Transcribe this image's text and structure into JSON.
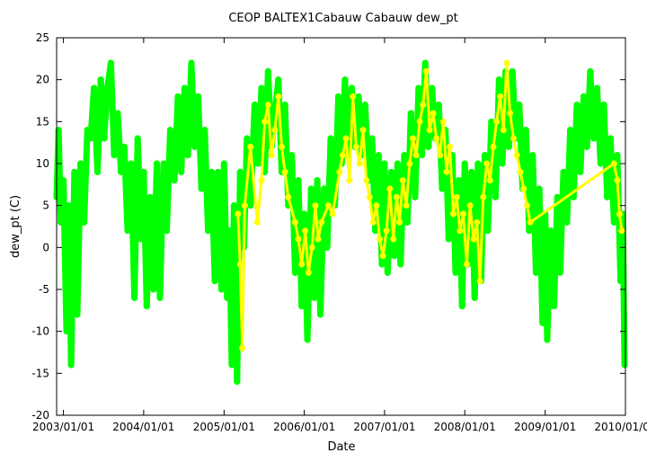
{
  "chart_data": {
    "type": "scatter",
    "title": "CEOP BALTEX1Cabauw Cabauw  dew_pt",
    "xlabel": "Date",
    "ylabel": "dew_pt (C)",
    "x_scale": "date",
    "xlim": [
      "2002/12/01",
      "2010/01/01"
    ],
    "ylim": [
      -20,
      25
    ],
    "y_ticks": [
      -20,
      -15,
      -10,
      -5,
      0,
      5,
      10,
      15,
      20,
      25
    ],
    "x_ticks": [
      "2003/01/01",
      "2004/01/01",
      "2005/01/01",
      "2006/01/01",
      "2007/01/01",
      "2008/01/01",
      "2009/01/01",
      "2010/01/01"
    ],
    "grid": false,
    "legend": "none",
    "series": [
      {
        "color": "#00ff00",
        "points": [
          [
            "2002/12/01",
            6
          ],
          [
            "2002/12/10",
            14
          ],
          [
            "2002/12/20",
            3
          ],
          [
            "2003/01/01",
            8
          ],
          [
            "2003/01/15",
            -10
          ],
          [
            "2003/01/25",
            5
          ],
          [
            "2003/02/05",
            -14
          ],
          [
            "2003/02/20",
            9
          ],
          [
            "2003/03/05",
            -8
          ],
          [
            "2003/03/20",
            10
          ],
          [
            "2003/04/05",
            3
          ],
          [
            "2003/04/20",
            14
          ],
          [
            "2003/05/05",
            13
          ],
          [
            "2003/05/20",
            19
          ],
          [
            "2003/06/05",
            9
          ],
          [
            "2003/06/20",
            20
          ],
          [
            "2003/07/05",
            13
          ],
          [
            "2003/07/20",
            19
          ],
          [
            "2003/08/05",
            22
          ],
          [
            "2003/08/20",
            11
          ],
          [
            "2003/09/05",
            16
          ],
          [
            "2003/09/20",
            9
          ],
          [
            "2003/10/05",
            12
          ],
          [
            "2003/10/20",
            2
          ],
          [
            "2003/11/05",
            10
          ],
          [
            "2003/11/20",
            -6
          ],
          [
            "2003/12/05",
            13
          ],
          [
            "2003/12/20",
            1
          ],
          [
            "2004/01/01",
            9
          ],
          [
            "2004/01/15",
            -7
          ],
          [
            "2004/01/30",
            6
          ],
          [
            "2004/02/15",
            -5
          ],
          [
            "2004/03/01",
            10
          ],
          [
            "2004/03/15",
            -6
          ],
          [
            "2004/04/01",
            10
          ],
          [
            "2004/04/15",
            2
          ],
          [
            "2004/05/01",
            14
          ],
          [
            "2004/05/20",
            8
          ],
          [
            "2004/06/05",
            18
          ],
          [
            "2004/06/20",
            9
          ],
          [
            "2004/07/05",
            19
          ],
          [
            "2004/07/20",
            11
          ],
          [
            "2004/08/05",
            22
          ],
          [
            "2004/08/20",
            12
          ],
          [
            "2004/09/05",
            18
          ],
          [
            "2004/09/20",
            7
          ],
          [
            "2004/10/05",
            14
          ],
          [
            "2004/10/20",
            2
          ],
          [
            "2004/11/05",
            9
          ],
          [
            "2004/11/20",
            -4
          ],
          [
            "2004/12/05",
            9
          ],
          [
            "2004/12/20",
            -5
          ],
          [
            "2005/01/01",
            10
          ],
          [
            "2005/01/15",
            -6
          ],
          [
            "2005/01/25",
            2
          ],
          [
            "2005/02/05",
            -14
          ],
          [
            "2005/02/15",
            5
          ],
          [
            "2005/03/01",
            -16
          ],
          [
            "2005/03/15",
            9
          ],
          [
            "2005/04/01",
            0
          ],
          [
            "2005/04/15",
            13
          ],
          [
            "2005/05/01",
            5
          ],
          [
            "2005/05/20",
            17
          ],
          [
            "2005/06/05",
            10
          ],
          [
            "2005/06/20",
            19
          ],
          [
            "2005/07/05",
            9
          ],
          [
            "2005/07/20",
            21
          ],
          [
            "2005/08/05",
            12
          ],
          [
            "2005/08/20",
            16
          ],
          [
            "2005/09/05",
            20
          ],
          [
            "2005/09/20",
            9
          ],
          [
            "2005/10/05",
            17
          ],
          [
            "2005/10/20",
            5
          ],
          [
            "2005/11/05",
            11
          ],
          [
            "2005/11/20",
            -3
          ],
          [
            "2005/12/05",
            8
          ],
          [
            "2005/12/20",
            -7
          ],
          [
            "2006/01/01",
            4
          ],
          [
            "2006/01/15",
            -11
          ],
          [
            "2006/02/01",
            7
          ],
          [
            "2006/02/15",
            -6
          ],
          [
            "2006/03/01",
            8
          ],
          [
            "2006/03/15",
            -8
          ],
          [
            "2006/04/01",
            7
          ],
          [
            "2006/04/15",
            0
          ],
          [
            "2006/05/01",
            13
          ],
          [
            "2006/05/20",
            5
          ],
          [
            "2006/06/05",
            18
          ],
          [
            "2006/06/20",
            10
          ],
          [
            "2006/07/05",
            20
          ],
          [
            "2006/07/20",
            11
          ],
          [
            "2006/08/05",
            19
          ],
          [
            "2006/08/20",
            12
          ],
          [
            "2006/09/05",
            18
          ],
          [
            "2006/09/20",
            11
          ],
          [
            "2006/10/05",
            17
          ],
          [
            "2006/10/20",
            8
          ],
          [
            "2006/11/05",
            13
          ],
          [
            "2006/11/20",
            2
          ],
          [
            "2006/12/05",
            11
          ],
          [
            "2006/12/20",
            -2
          ],
          [
            "2007/01/01",
            10
          ],
          [
            "2007/01/15",
            -3
          ],
          [
            "2007/02/01",
            9
          ],
          [
            "2007/02/15",
            -1
          ],
          [
            "2007/03/01",
            10
          ],
          [
            "2007/03/15",
            -2
          ],
          [
            "2007/04/01",
            11
          ],
          [
            "2007/04/15",
            3
          ],
          [
            "2007/05/01",
            16
          ],
          [
            "2007/05/20",
            6
          ],
          [
            "2007/06/05",
            19
          ],
          [
            "2007/06/20",
            11
          ],
          [
            "2007/07/05",
            22
          ],
          [
            "2007/07/20",
            12
          ],
          [
            "2007/08/05",
            19
          ],
          [
            "2007/08/20",
            13
          ],
          [
            "2007/09/05",
            17
          ],
          [
            "2007/09/20",
            7
          ],
          [
            "2007/10/05",
            14
          ],
          [
            "2007/10/20",
            1
          ],
          [
            "2007/11/05",
            11
          ],
          [
            "2007/11/20",
            -3
          ],
          [
            "2007/12/05",
            8
          ],
          [
            "2007/12/20",
            -7
          ],
          [
            "2008/01/01",
            10
          ],
          [
            "2008/01/15",
            -2
          ],
          [
            "2008/02/01",
            9
          ],
          [
            "2008/02/15",
            -6
          ],
          [
            "2008/03/01",
            10
          ],
          [
            "2008/03/15",
            -4
          ],
          [
            "2008/04/01",
            11
          ],
          [
            "2008/04/15",
            2
          ],
          [
            "2008/05/01",
            15
          ],
          [
            "2008/05/20",
            6
          ],
          [
            "2008/06/05",
            20
          ],
          [
            "2008/06/20",
            10
          ],
          [
            "2008/07/05",
            21
          ],
          [
            "2008/07/20",
            12
          ],
          [
            "2008/08/05",
            21
          ],
          [
            "2008/08/20",
            13
          ],
          [
            "2008/09/05",
            17
          ],
          [
            "2008/09/20",
            7
          ],
          [
            "2008/10/05",
            14
          ],
          [
            "2008/10/20",
            2
          ],
          [
            "2008/11/05",
            11
          ],
          [
            "2008/11/20",
            -3
          ],
          [
            "2008/12/05",
            7
          ],
          [
            "2008/12/20",
            -9
          ],
          [
            "2009/01/01",
            4
          ],
          [
            "2009/01/10",
            -11
          ],
          [
            "2009/01/25",
            2
          ],
          [
            "2009/02/10",
            -7
          ],
          [
            "2009/02/25",
            6
          ],
          [
            "2009/03/10",
            -3
          ],
          [
            "2009/03/25",
            9
          ],
          [
            "2009/04/10",
            3
          ],
          [
            "2009/04/25",
            14
          ],
          [
            "2009/05/10",
            6
          ],
          [
            "2009/05/25",
            17
          ],
          [
            "2009/06/10",
            9
          ],
          [
            "2009/06/25",
            18
          ],
          [
            "2009/07/10",
            12
          ],
          [
            "2009/07/25",
            21
          ],
          [
            "2009/08/10",
            13
          ],
          [
            "2009/08/25",
            19
          ],
          [
            "2009/09/10",
            10
          ],
          [
            "2009/09/25",
            17
          ],
          [
            "2009/10/10",
            6
          ],
          [
            "2009/10/25",
            13
          ],
          [
            "2009/11/10",
            3
          ],
          [
            "2009/11/25",
            11
          ],
          [
            "2009/12/10",
            -4
          ],
          [
            "2009/12/20",
            4
          ],
          [
            "2009/12/28",
            -14
          ]
        ]
      },
      {
        "color": "#ffff00",
        "points": [
          [
            "2005/03/05",
            4
          ],
          [
            "2005/03/15",
            -2
          ],
          [
            "2005/03/25",
            -12
          ],
          [
            "2005/04/05",
            5
          ],
          [
            "2005/05/01",
            12
          ],
          [
            "2005/06/01",
            3
          ],
          [
            "2005/06/20",
            8
          ],
          [
            "2005/07/05",
            15
          ],
          [
            "2005/07/20",
            17
          ],
          [
            "2005/08/05",
            11
          ],
          [
            "2005/08/20",
            14
          ],
          [
            "2005/09/05",
            18
          ],
          [
            "2005/09/20",
            12
          ],
          [
            "2005/10/05",
            9
          ],
          [
            "2005/10/20",
            6
          ],
          [
            "2005/11/20",
            3
          ],
          [
            "2005/12/05",
            1
          ],
          [
            "2005/12/20",
            -2
          ],
          [
            "2006/01/05",
            2
          ],
          [
            "2006/01/20",
            -3
          ],
          [
            "2006/02/05",
            0
          ],
          [
            "2006/02/20",
            5
          ],
          [
            "2006/03/05",
            1
          ],
          [
            "2006/03/20",
            3
          ],
          [
            "2006/04/20",
            5
          ],
          [
            "2006/05/10",
            4
          ],
          [
            "2006/06/10",
            9
          ],
          [
            "2006/06/25",
            11
          ],
          [
            "2006/07/10",
            13
          ],
          [
            "2006/07/25",
            8
          ],
          [
            "2006/08/10",
            18
          ],
          [
            "2006/08/25",
            12
          ],
          [
            "2006/09/10",
            10
          ],
          [
            "2006/09/25",
            14
          ],
          [
            "2006/10/10",
            8
          ],
          [
            "2006/10/25",
            6
          ],
          [
            "2006/11/10",
            3
          ],
          [
            "2006/11/25",
            5
          ],
          [
            "2006/12/10",
            1
          ],
          [
            "2006/12/25",
            -1
          ],
          [
            "2007/01/10",
            2
          ],
          [
            "2007/01/25",
            7
          ],
          [
            "2007/02/10",
            1
          ],
          [
            "2007/02/25",
            6
          ],
          [
            "2007/03/10",
            3
          ],
          [
            "2007/03/25",
            8
          ],
          [
            "2007/04/10",
            5
          ],
          [
            "2007/04/25",
            10
          ],
          [
            "2007/05/10",
            13
          ],
          [
            "2007/05/25",
            11
          ],
          [
            "2007/06/10",
            15
          ],
          [
            "2007/06/25",
            17
          ],
          [
            "2007/07/10",
            21
          ],
          [
            "2007/07/25",
            14
          ],
          [
            "2007/08/10",
            16
          ],
          [
            "2007/08/25",
            13
          ],
          [
            "2007/09/10",
            11
          ],
          [
            "2007/09/25",
            15
          ],
          [
            "2007/10/10",
            9
          ],
          [
            "2007/10/25",
            12
          ],
          [
            "2007/11/10",
            4
          ],
          [
            "2007/11/25",
            6
          ],
          [
            "2007/12/10",
            2
          ],
          [
            "2007/12/25",
            4
          ],
          [
            "2008/01/10",
            -2
          ],
          [
            "2008/01/25",
            5
          ],
          [
            "2008/02/10",
            1
          ],
          [
            "2008/02/25",
            3
          ],
          [
            "2008/03/10",
            -4
          ],
          [
            "2008/03/25",
            6
          ],
          [
            "2008/04/10",
            10
          ],
          [
            "2008/04/25",
            8
          ],
          [
            "2008/05/10",
            12
          ],
          [
            "2008/05/25",
            15
          ],
          [
            "2008/06/10",
            18
          ],
          [
            "2008/06/25",
            14
          ],
          [
            "2008/07/10",
            22
          ],
          [
            "2008/07/25",
            16
          ],
          [
            "2008/08/10",
            13
          ],
          [
            "2008/08/25",
            11
          ],
          [
            "2008/09/10",
            9
          ],
          [
            "2008/09/25",
            7
          ],
          [
            "2008/10/10",
            5
          ],
          [
            "2008/10/25",
            3
          ],
          [
            "2009/11/10",
            10
          ],
          [
            "2009/11/25",
            8
          ],
          [
            "2009/12/05",
            4
          ],
          [
            "2009/12/15",
            2
          ]
        ]
      }
    ]
  }
}
